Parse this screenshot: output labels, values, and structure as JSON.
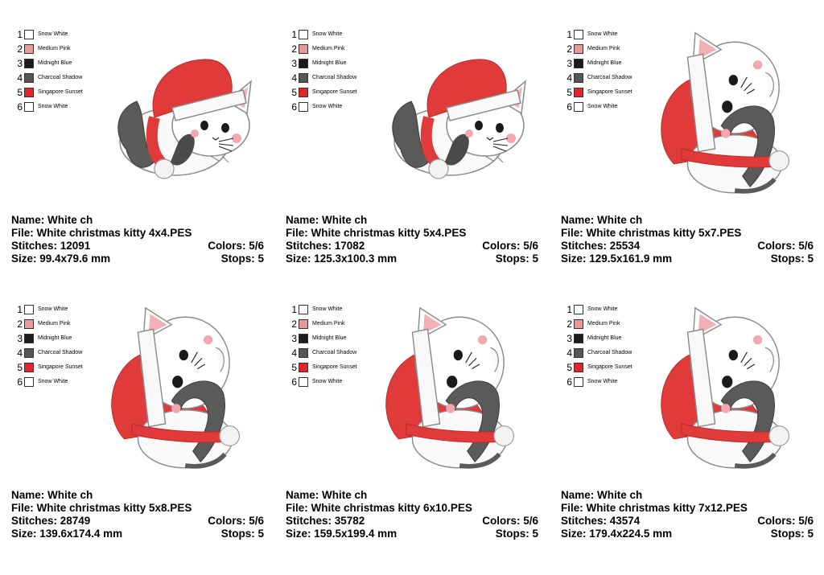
{
  "palette": [
    {
      "num": "1",
      "name": "Snow White",
      "color": "#ffffff"
    },
    {
      "num": "2",
      "name": "Medium Pink",
      "color": "#e89a9a"
    },
    {
      "num": "3",
      "name": "Midnight Blue",
      "color": "#1c1c1c"
    },
    {
      "num": "4",
      "name": "Charcoal Shadow",
      "color": "#555555"
    },
    {
      "num": "5",
      "name": "Singapore Sunset",
      "color": "#e0262a"
    },
    {
      "num": "6",
      "name": "Snow White",
      "color": "#ffffff"
    }
  ],
  "designs": [
    {
      "name": "Name: White ch",
      "file": "File: White christmas kitty 4x4.PES",
      "stitches": "Stitches: 12091",
      "colors": "Colors: 5/6",
      "size": "Size: 99.4x79.6 mm",
      "stops": "Stops: 5"
    },
    {
      "name": "Name: White ch",
      "file": "File: White christmas kitty 5x4.PES",
      "stitches": "Stitches: 17082",
      "colors": "Colors: 5/6",
      "size": "Size: 125.3x100.3 mm",
      "stops": "Stops: 5"
    },
    {
      "name": "Name: White ch",
      "file": "File: White christmas kitty 5x7.PES",
      "stitches": "Stitches: 25534",
      "colors": "Colors: 5/6",
      "size": "Size: 129.5x161.9 mm",
      "stops": "Stops: 5"
    },
    {
      "name": "Name: White ch",
      "file": "File: White christmas kitty 5x8.PES",
      "stitches": "Stitches: 28749",
      "colors": "Colors: 5/6",
      "size": "Size: 139.6x174.4 mm",
      "stops": "Stops: 5"
    },
    {
      "name": "Name: White ch",
      "file": "File: White christmas kitty 6x10.PES",
      "stitches": "Stitches: 35782",
      "colors": "Colors: 5/6",
      "size": "Size: 159.5x199.4 mm",
      "stops": "Stops: 5"
    },
    {
      "name": "Name: White ch",
      "file": "File: White christmas kitty 7x12.PES",
      "stitches": "Stitches: 43574",
      "colors": "Colors: 5/6",
      "size": "Size: 179.4x224.5 mm",
      "stops": "Stops: 5"
    }
  ]
}
